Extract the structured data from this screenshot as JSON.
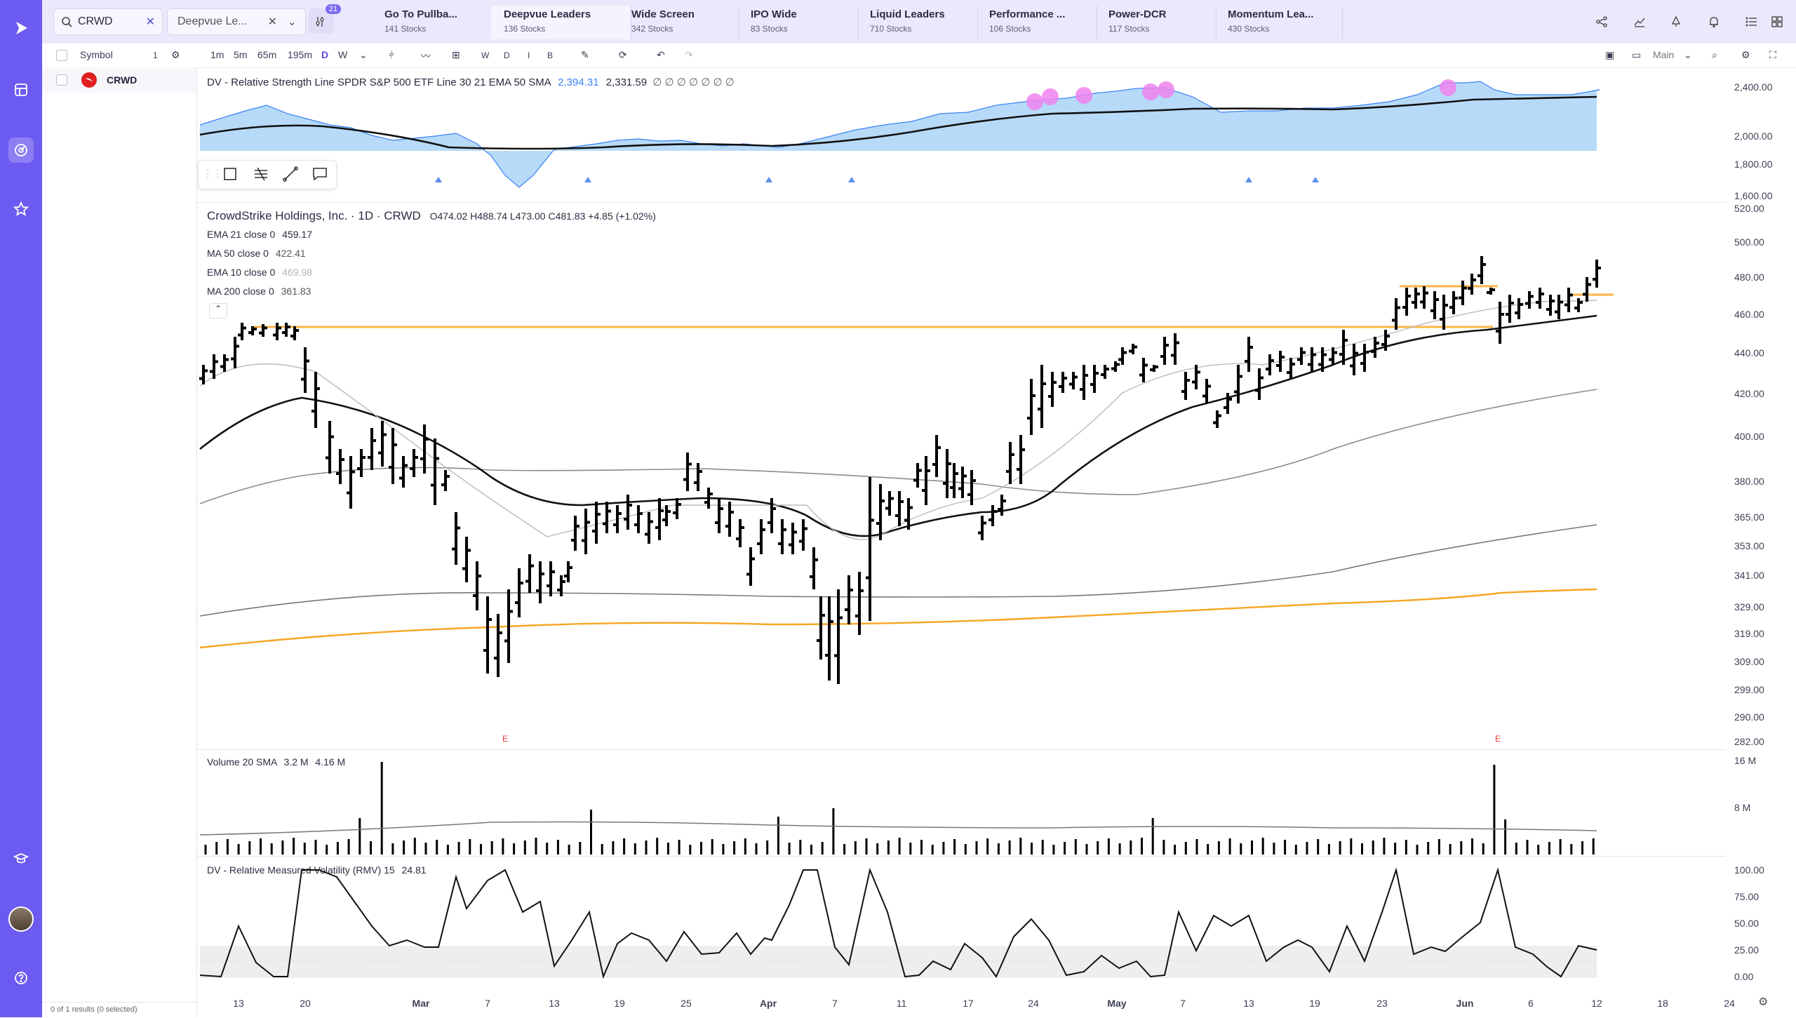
{
  "search": {
    "value": "CRWD",
    "watchlist_value": "Deepvue Le..."
  },
  "filter_badge": "21",
  "tabs": [
    {
      "title": "Go To Pullba...",
      "sub": "141 Stocks"
    },
    {
      "title": "Deepvue Leaders",
      "sub": "136 Stocks"
    },
    {
      "title": "Wide Screen",
      "sub": "342 Stocks"
    },
    {
      "title": "IPO Wide",
      "sub": "83 Stocks"
    },
    {
      "title": "Liquid Leaders",
      "sub": "710 Stocks"
    },
    {
      "title": "Performance ...",
      "sub": "106 Stocks"
    },
    {
      "title": "Power-DCR",
      "sub": "117 Stocks"
    },
    {
      "title": "Momentum Lea...",
      "sub": "430 Stocks"
    }
  ],
  "toolbar": {
    "symbol_header": "Symbol",
    "symbol_count": "1",
    "intervals": [
      "1m",
      "5m",
      "65m",
      "195m",
      "D",
      "W"
    ],
    "mini_buttons": [
      "W",
      "D",
      "I",
      "B"
    ],
    "layout_name": "Main"
  },
  "watchlist": {
    "symbol": "CRWD",
    "footer": "0 of 1 results (0 selected)"
  },
  "rs_pane": {
    "title": "DV - Relative Strength Line SPDR S&P 500 ETF Line 30 21 EMA 50 SMA",
    "v1": "2,394.31",
    "v2": "2,331.59",
    "extras": "∅ ∅ ∅ ∅ ∅ ∅ ∅",
    "yticks": [
      "2,400.00",
      "2,000.00",
      "1,800.00",
      "1,600.00"
    ]
  },
  "price_pane": {
    "title": "CrowdStrike Holdings, Inc. · 1D · CRWD",
    "ohlc": "O474.02  H488.74  L473.00  C481.83  +4.85 (+1.02%)",
    "indicators": [
      {
        "label": "EMA 21 close 0",
        "value": "459.17",
        "color": "#222222"
      },
      {
        "label": "MA 50 close 0",
        "value": "422.41",
        "color": "#555555"
      },
      {
        "label": "EMA 10 close 0",
        "value": "469.98",
        "color": "#b5b5b5"
      },
      {
        "label": "MA 200 close 0",
        "value": "361.83",
        "color": "#555555"
      }
    ],
    "yticks": [
      "520.00",
      "500.00",
      "480.00",
      "460.00",
      "440.00",
      "420.00",
      "400.00",
      "380.00",
      "365.00",
      "353.00",
      "341.00",
      "329.00",
      "319.00",
      "309.00",
      "299.00",
      "290.00",
      "282.00"
    ],
    "earnings_marker": "E"
  },
  "volume_pane": {
    "title": "Volume 20 SMA",
    "v1": "3.2 M",
    "v2": "4.16 M",
    "yticks": [
      "16 M",
      "8 M"
    ]
  },
  "rmv_pane": {
    "title": "DV - Relative Measured Volatility (RMV) 15",
    "value": "24.81",
    "yticks": [
      "100.00",
      "75.00",
      "50.00",
      "25.00",
      "0.00"
    ]
  },
  "xaxis": [
    "13",
    "20",
    "Mar",
    "7",
    "13",
    "19",
    "25",
    "Apr",
    "7",
    "11",
    "17",
    "24",
    "May",
    "7",
    "13",
    "19",
    "23",
    "Jun",
    "6",
    "12",
    "18",
    "24"
  ],
  "colors": {
    "accent": "#6c5bf0",
    "topbar": "#ebe8fb",
    "pivot_line": "#ffb347",
    "ma200": "#f5a623",
    "rs_fill": "#9fcdf5",
    "earnings": "#e53935",
    "rs_dot": "#ee82ee"
  }
}
